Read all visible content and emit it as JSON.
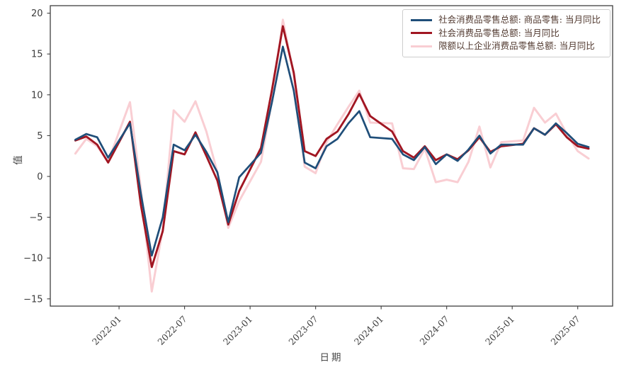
{
  "chart_data": {
    "type": "line",
    "title": "",
    "xlabel": "日期",
    "ylabel": "值",
    "grid": false,
    "legend_position": "upper right",
    "ylim": [
      -15.9,
      20.9
    ],
    "yticks": [
      20,
      15,
      10,
      5,
      0,
      -5,
      -10,
      -15
    ],
    "xticks": [
      "2022-01",
      "2022-07",
      "2023-01",
      "2023-07",
      "2024-01",
      "2024-07",
      "2025-01",
      "2025-07"
    ],
    "x": [
      "2021-09",
      "2021-10",
      "2021-11",
      "2021-12",
      "2022-02",
      "2022-03",
      "2022-04",
      "2022-05",
      "2022-06",
      "2022-07",
      "2022-08",
      "2022-09",
      "2022-10",
      "2022-11",
      "2022-12",
      "2023-02",
      "2023-03",
      "2023-04",
      "2023-05",
      "2023-06",
      "2023-07",
      "2023-08",
      "2023-09",
      "2023-10",
      "2023-11",
      "2023-12",
      "2024-02",
      "2024-03",
      "2024-04",
      "2024-05",
      "2024-06",
      "2024-07",
      "2024-08",
      "2024-09",
      "2024-10",
      "2024-11",
      "2024-12",
      "2025-02",
      "2025-03",
      "2025-04",
      "2025-05",
      "2025-06",
      "2025-07",
      "2025-08"
    ],
    "series": [
      {
        "name": "社会消费品零售总额: 商品零售: 当月同比",
        "color": "#1f4e79",
        "width": 2.7,
        "values": [
          4.5,
          5.2,
          4.8,
          2.3,
          6.5,
          -2.1,
          -9.7,
          -5.0,
          3.9,
          3.2,
          5.1,
          3.0,
          0.5,
          -5.6,
          -0.1,
          2.9,
          9.1,
          15.9,
          10.5,
          1.7,
          1.0,
          3.7,
          4.6,
          6.5,
          8.0,
          4.8,
          4.6,
          2.7,
          2.0,
          3.6,
          1.5,
          2.7,
          1.9,
          3.3,
          5.0,
          2.8,
          3.9,
          3.9,
          5.9,
          5.1,
          6.5,
          5.3,
          4.0,
          3.6
        ]
      },
      {
        "name": "社会消费品零售总额: 当月同比",
        "color": "#a11622",
        "width": 2.9,
        "values": [
          4.4,
          4.9,
          3.9,
          1.7,
          6.7,
          -3.5,
          -11.1,
          -6.7,
          3.1,
          2.7,
          5.4,
          2.5,
          -0.5,
          -5.9,
          -1.8,
          3.5,
          10.6,
          18.4,
          12.7,
          3.1,
          2.5,
          4.6,
          5.5,
          7.6,
          10.1,
          7.4,
          5.5,
          3.1,
          2.3,
          3.7,
          2.0,
          2.7,
          2.1,
          3.2,
          4.8,
          3.0,
          3.7,
          4.0,
          5.9,
          5.1,
          6.4,
          4.8,
          3.7,
          3.4
        ]
      },
      {
        "name": "限额以上企业消费品零售总额: 当月同比",
        "color": "#f9ced3",
        "width": 3.0,
        "values": [
          2.8,
          4.6,
          3.7,
          1.8,
          9.1,
          -1.5,
          -14.1,
          -6.5,
          8.1,
          6.7,
          9.2,
          5.5,
          0.5,
          -6.3,
          -3.0,
          1.8,
          9.3,
          19.2,
          12.4,
          1.2,
          0.4,
          4.2,
          6.4,
          8.5,
          10.5,
          6.6,
          6.5,
          1.0,
          0.9,
          3.4,
          -0.7,
          -0.4,
          -0.7,
          1.8,
          6.1,
          1.1,
          4.2,
          4.4,
          8.4,
          6.6,
          7.7,
          5.2,
          3.1,
          2.2
        ]
      }
    ],
    "axis_color": "#3f3f3f",
    "tick_label_color": "#3c3c3c",
    "label_color": "#4a4a4a"
  }
}
